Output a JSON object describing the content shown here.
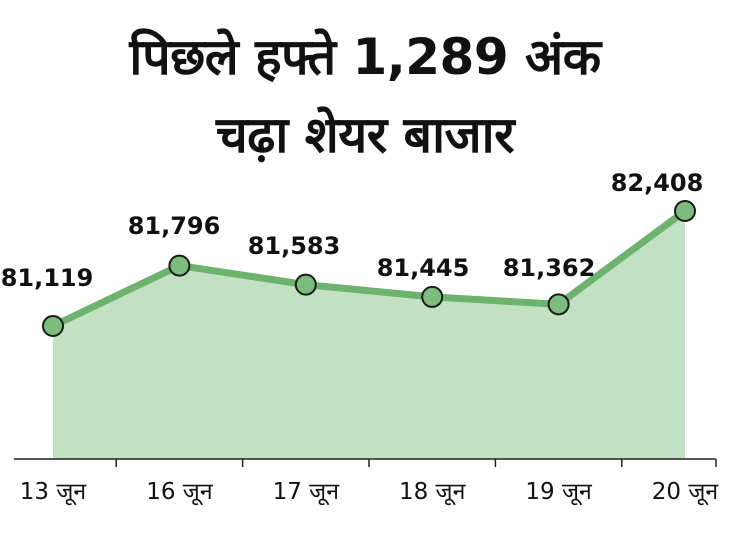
{
  "header": {
    "title_line1": "पिछले हफ्ते 1,289 अंक",
    "title_line2": "चढ़ा शेयर बाजार"
  },
  "chart_data": {
    "type": "area",
    "title": "पिछले हफ्ते 1,289 अंक चढ़ा शेयर बाजार",
    "categories": [
      "13 जून",
      "16 जून",
      "17 जून",
      "18 जून",
      "19 जून",
      "20 जून"
    ],
    "series": [
      {
        "values": [
          81119,
          81796,
          81583,
          81445,
          81362,
          82408
        ],
        "value_labels": [
          "81,119",
          "81,796",
          "81,583",
          "81,445",
          "81,362",
          "82,408"
        ]
      }
    ],
    "xlabel": "",
    "ylabel": "",
    "ylim": [
      79000,
      82750
    ],
    "grid": false,
    "data_labels": true,
    "colors": {
      "line": "#6db36d",
      "fill": "#c2e0c2",
      "marker_fill": "#7cbc7c",
      "marker_stroke": "#1a1a1a",
      "axis": "#222222"
    }
  }
}
